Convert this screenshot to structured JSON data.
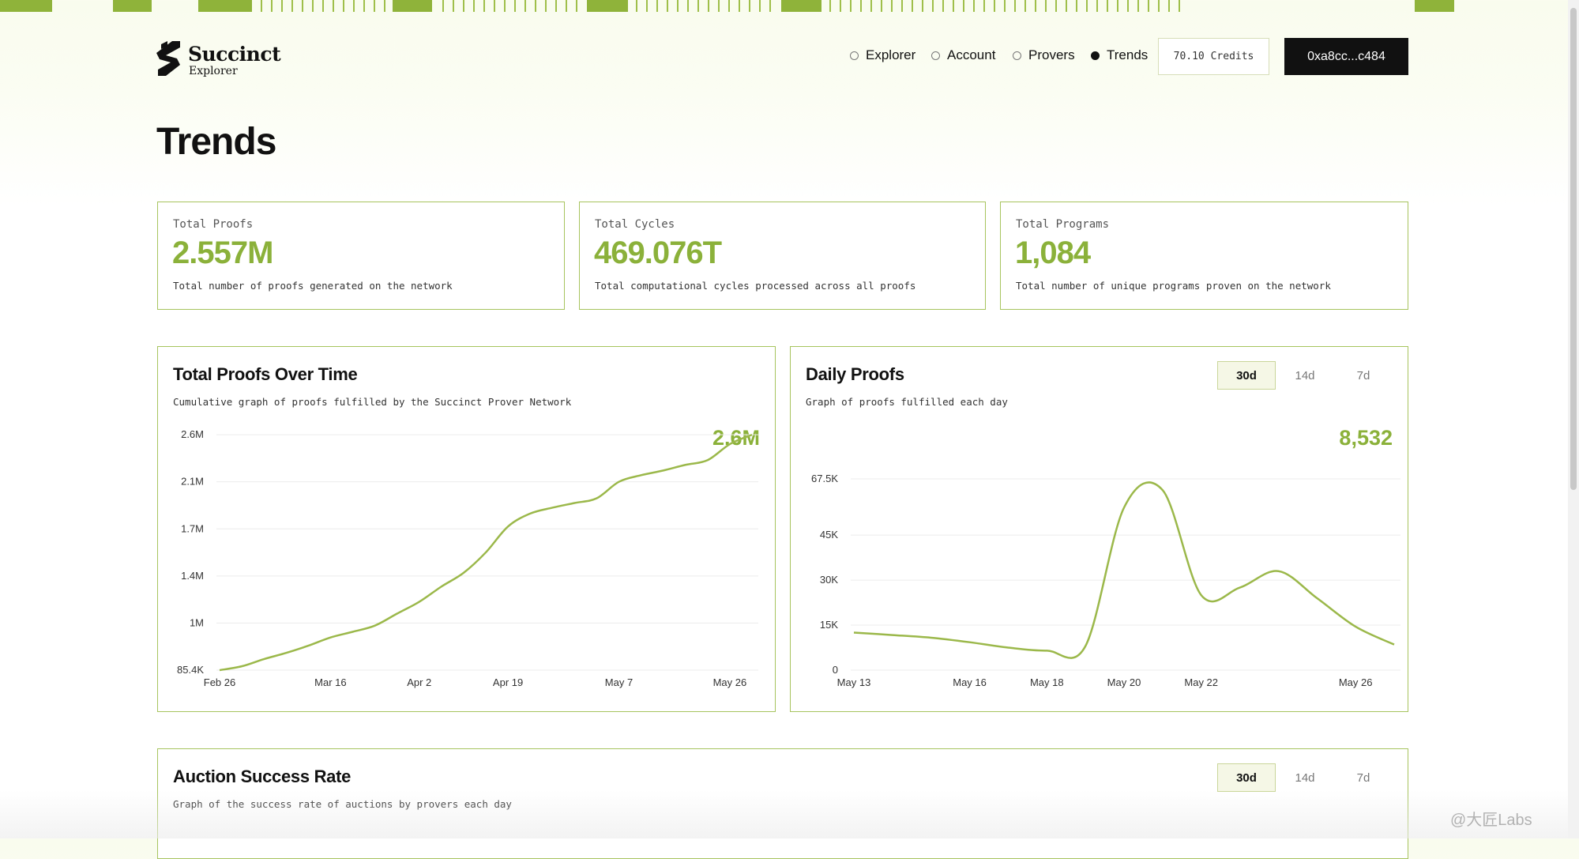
{
  "brand": {
    "name": "Succinct",
    "sub": "Explorer"
  },
  "nav": [
    {
      "label": "Explorer",
      "selected": false
    },
    {
      "label": "Account",
      "selected": false
    },
    {
      "label": "Provers",
      "selected": false
    },
    {
      "label": "Trends",
      "selected": true
    }
  ],
  "credits": "70.10 Credits",
  "wallet": "0xa8cc...c484",
  "page_title": "Trends",
  "stats": [
    {
      "label": "Total Proofs",
      "value": "2.557M",
      "desc": "Total number of proofs generated on the network"
    },
    {
      "label": "Total Cycles",
      "value": "469.076T",
      "desc": "Total computational cycles processed across all proofs"
    },
    {
      "label": "Total Programs",
      "value": "1,084",
      "desc": "Total number of unique programs proven on the network"
    }
  ],
  "total_chart": {
    "title": "Total Proofs Over Time",
    "subtitle": "Cumulative graph of proofs fulfilled by the Succinct Prover Network",
    "big_value": "2.6M"
  },
  "daily_chart": {
    "title": "Daily Proofs",
    "subtitle": "Graph of proofs fulfilled each day",
    "big_value": "8,532",
    "ranges": [
      "30d",
      "14d",
      "7d"
    ],
    "active_range": "30d"
  },
  "auction_chart": {
    "title": "Auction Success Rate",
    "subtitle": "Graph of the success rate of auctions by provers each day",
    "ranges": [
      "30d",
      "14d",
      "7d"
    ],
    "active_range": "30d"
  },
  "watermark": "@大匠Labs",
  "colors": {
    "accent": "#8bb13a",
    "border": "#a7c45e",
    "dark": "#111111"
  },
  "chart_data": [
    {
      "type": "line",
      "title": "Total Proofs Over Time",
      "x": [
        "Feb 26",
        "Mar 1",
        "Mar 5",
        "Mar 9",
        "Mar 13",
        "Mar 16",
        "Mar 20",
        "Mar 24",
        "Mar 28",
        "Apr 2",
        "Apr 6",
        "Apr 10",
        "Apr 14",
        "Apr 19",
        "Apr 23",
        "Apr 27",
        "May 1",
        "May 4",
        "May 7",
        "May 11",
        "May 15",
        "May 19",
        "May 22",
        "May 26",
        "May 28"
      ],
      "y": [
        85400,
        160000,
        300000,
        420000,
        560000,
        720000,
        830000,
        950000,
        1080000,
        1180000,
        1310000,
        1420000,
        1550000,
        1720000,
        1830000,
        1880000,
        1920000,
        1960000,
        2100000,
        2170000,
        2220000,
        2280000,
        2330000,
        2500000,
        2600000
      ],
      "ytick_labels": [
        "85.4K",
        "1M",
        "1.4M",
        "1.7M",
        "2.1M",
        "2.6M"
      ],
      "ytick_values": [
        85400,
        1000000,
        1400000,
        1700000,
        2100000,
        2600000
      ],
      "xtick_labels": [
        "Feb 26",
        "Mar 16",
        "Apr 2",
        "Apr 19",
        "May 7",
        "May 26"
      ],
      "xtick_positions": [
        0,
        5,
        9,
        13,
        18,
        23
      ],
      "ylim": [
        85400,
        2700000
      ],
      "grid": true
    },
    {
      "type": "line",
      "title": "Daily Proofs",
      "x": [
        "May 13",
        "May 14",
        "May 15",
        "May 16",
        "May 17",
        "May 18",
        "May 19",
        "May 20",
        "May 21",
        "May 22",
        "May 23",
        "May 24",
        "May 25",
        "May 26",
        "May 27"
      ],
      "y": [
        12500,
        11700,
        10800,
        9300,
        7500,
        6500,
        8000,
        56000,
        63000,
        25000,
        27500,
        33000,
        24000,
        14500,
        8532
      ],
      "ytick_labels": [
        "0",
        "15K",
        "30K",
        "45K",
        "67.5K"
      ],
      "ytick_values": [
        0,
        15000,
        30000,
        45000,
        67500
      ],
      "xtick_labels": [
        "May 13",
        "May 16",
        "May 18",
        "May 20",
        "May 22",
        "May 26"
      ],
      "xtick_positions": [
        0,
        3,
        5,
        7,
        9,
        13
      ],
      "ylim": [
        0,
        67500
      ],
      "grid": true
    }
  ]
}
